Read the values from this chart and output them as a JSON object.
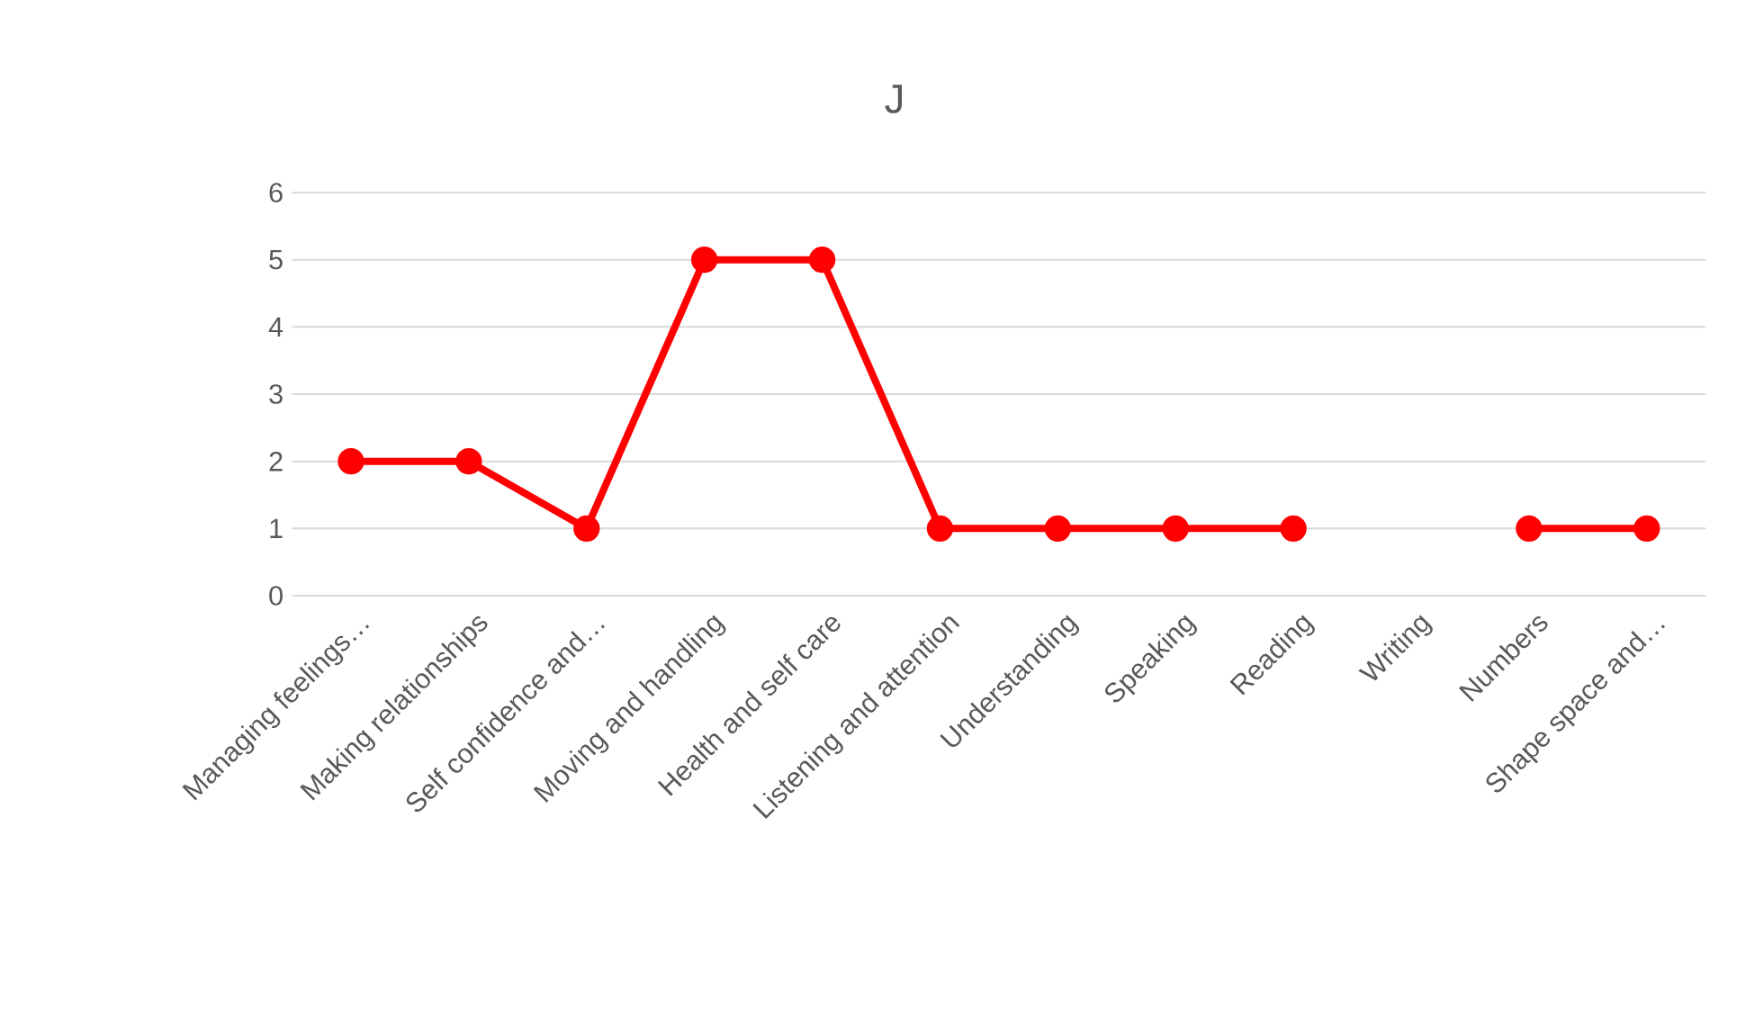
{
  "chart_data": {
    "type": "line",
    "title": "J",
    "categories": [
      "Managing feelings…",
      "Making relationships",
      "Self confidence and…",
      "Moving and handling",
      "Health and self care",
      "Listening and attention",
      "Understanding",
      "Speaking",
      "Reading",
      "Writing",
      "Numbers",
      "Shape space and…"
    ],
    "series": [
      {
        "color": "#ff0000",
        "values": [
          2,
          2,
          1,
          5,
          5,
          1,
          1,
          1,
          1,
          null,
          1,
          1
        ]
      }
    ],
    "ylim": [
      0,
      6
    ],
    "yticks": [
      0,
      1,
      2,
      3,
      4,
      5,
      6
    ],
    "grid": "y",
    "marker": "circle",
    "line_style": "solid"
  }
}
